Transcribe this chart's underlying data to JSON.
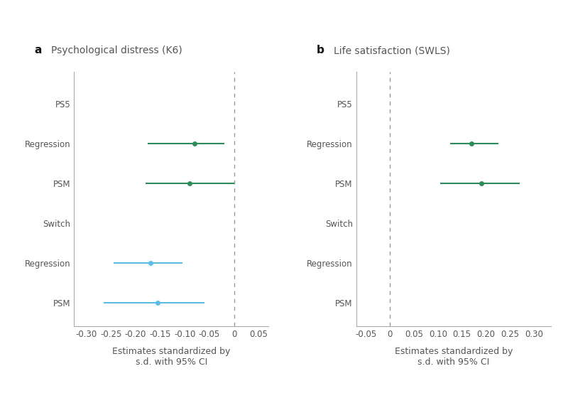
{
  "panel_a": {
    "title": "Psychological distress (K6)",
    "panel_label": "a",
    "yticks": [
      "PS5",
      "Regression",
      "PSM",
      "Switch",
      "Regression",
      "PSM"
    ],
    "ypositions": [
      5,
      4,
      3,
      2,
      1,
      0
    ],
    "data": [
      {
        "y": 4,
        "est": -0.08,
        "lo": -0.175,
        "hi": -0.02,
        "color": "#2e8b57"
      },
      {
        "y": 3,
        "est": -0.09,
        "lo": -0.18,
        "hi": 0.0,
        "color": "#2e8b57"
      },
      {
        "y": 1,
        "est": -0.17,
        "lo": -0.245,
        "hi": -0.105,
        "color": "#5bbde4"
      },
      {
        "y": 0,
        "est": -0.155,
        "lo": -0.265,
        "hi": -0.06,
        "color": "#5bbde4"
      }
    ],
    "xlim": [
      -0.325,
      0.07
    ],
    "xticks": [
      -0.3,
      -0.25,
      -0.2,
      -0.15,
      -0.1,
      -0.05,
      0,
      0.05
    ],
    "xticklabels": [
      "-0.30",
      "-0.25",
      "-0.20",
      "-0.15",
      "-0.10",
      "-0.05",
      "0",
      "0.05"
    ],
    "vline": 0,
    "xlabel": "Estimates standardized by\ns.d. with 95% CI"
  },
  "panel_b": {
    "title": "Life satisfaction (SWLS)",
    "panel_label": "b",
    "yticks": [
      "PS5",
      "Regression",
      "PSM",
      "Switch",
      "Regression",
      "PSM"
    ],
    "ypositions": [
      5,
      4,
      3,
      2,
      1,
      0
    ],
    "data": [
      {
        "y": 4,
        "est": 0.17,
        "lo": 0.125,
        "hi": 0.225,
        "color": "#2e8b57"
      },
      {
        "y": 3,
        "est": 0.19,
        "lo": 0.105,
        "hi": 0.27,
        "color": "#2e8b57"
      }
    ],
    "xlim": [
      -0.07,
      0.335
    ],
    "xticks": [
      -0.05,
      0,
      0.05,
      0.1,
      0.15,
      0.2,
      0.25,
      0.3
    ],
    "xticklabels": [
      "-0.05",
      "0",
      "0.05",
      "0.10",
      "0.15",
      "0.20",
      "0.25",
      "0.30"
    ],
    "vline": 0,
    "xlabel": "Estimates standardized by\ns.d. with 95% CI"
  },
  "background_color": "#ffffff",
  "spine_color": "#aaaaaa",
  "text_color": "#555555",
  "title_fontsize": 10,
  "label_fontsize": 9,
  "tick_fontsize": 8.5,
  "panel_label_fontsize": 11,
  "dot_size": 5,
  "line_width": 1.5
}
